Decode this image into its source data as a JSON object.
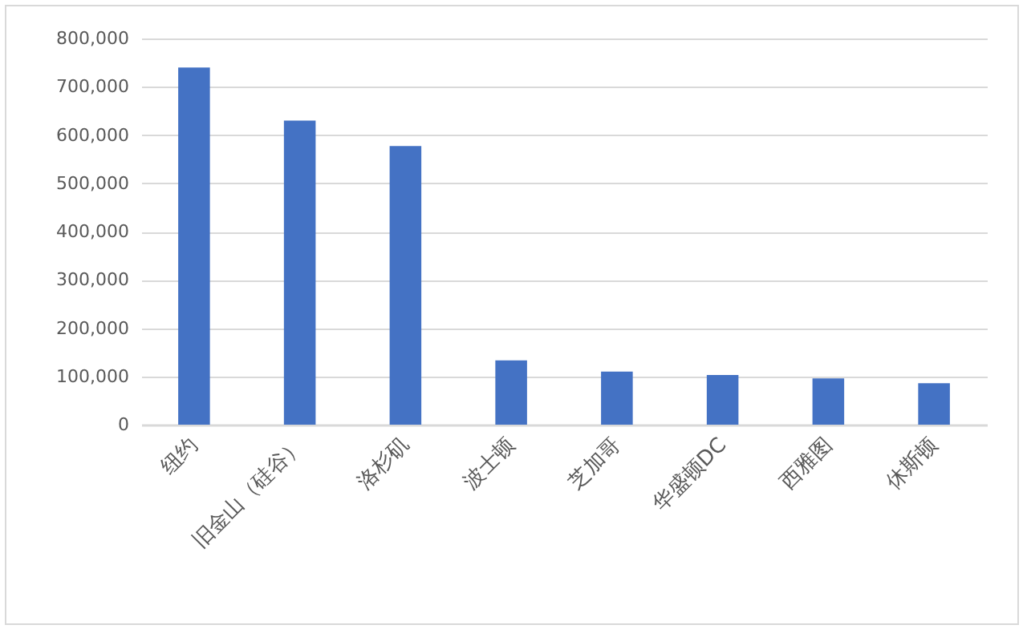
{
  "chart_data": {
    "type": "bar",
    "categories": [
      "纽约",
      "旧金山（硅谷）",
      "洛杉矶",
      "波士顿",
      "芝加哥",
      "华盛顿DC",
      "西雅图",
      "休斯顿"
    ],
    "values": [
      740000,
      630000,
      577000,
      133000,
      110000,
      103000,
      96000,
      86000
    ],
    "color": "#4472c4",
    "ylim": [
      0,
      800000
    ],
    "yticks": [
      {
        "value": 0,
        "label": "0"
      },
      {
        "value": 100000,
        "label": "100,000"
      },
      {
        "value": 200000,
        "label": "200,000"
      },
      {
        "value": 300000,
        "label": "300,000"
      },
      {
        "value": 400000,
        "label": "400,000"
      },
      {
        "value": 500000,
        "label": "500,000"
      },
      {
        "value": 600000,
        "label": "600,000"
      },
      {
        "value": 700000,
        "label": "700,000"
      },
      {
        "value": 800000,
        "label": "800,000"
      }
    ],
    "grid": "y"
  }
}
